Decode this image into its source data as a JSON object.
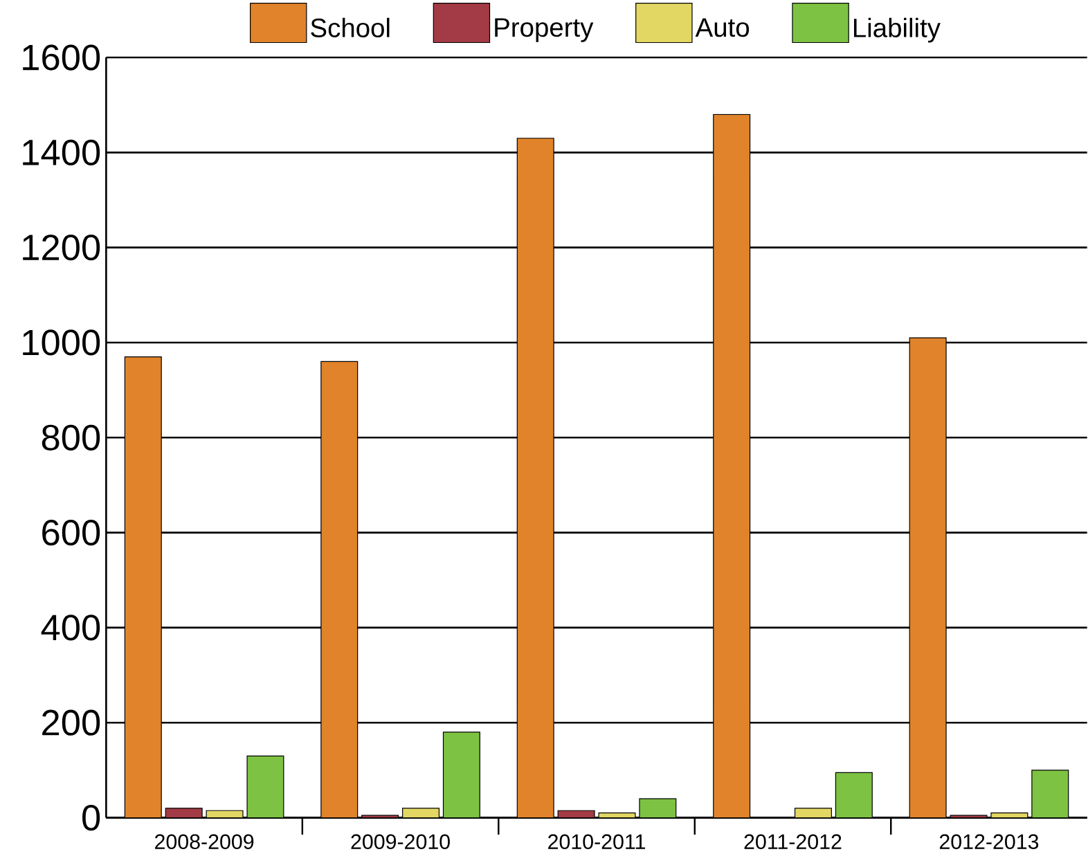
{
  "chart_data": {
    "type": "bar",
    "categories": [
      "2008-2009",
      "2009-2010",
      "2010-2011",
      "2011-2012",
      "2012-2013"
    ],
    "series": [
      {
        "name": "School",
        "color": "#e0832a",
        "values": [
          970,
          960,
          1430,
          1480,
          1010
        ]
      },
      {
        "name": "Property",
        "color": "#a23b45",
        "values": [
          20,
          5,
          15,
          0,
          5
        ]
      },
      {
        "name": "Auto",
        "color": "#e3d764",
        "values": [
          15,
          20,
          10,
          20,
          10
        ]
      },
      {
        "name": "Liability",
        "color": "#7dc242",
        "values": [
          130,
          180,
          40,
          95,
          100
        ]
      }
    ],
    "ylim": [
      0,
      1600
    ],
    "yticks": [
      0,
      200,
      400,
      600,
      800,
      1000,
      1200,
      1400,
      1600
    ],
    "grid": "y",
    "legend": "top"
  }
}
